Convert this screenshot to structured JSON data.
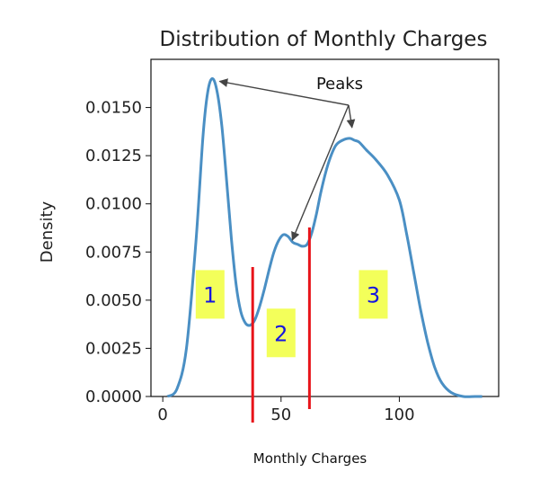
{
  "chart_data": {
    "type": "line",
    "title": "Distribution of Monthly Charges",
    "xlabel": "Monthly Charges",
    "ylabel": "Density",
    "xlim": [
      -5,
      142
    ],
    "ylim": [
      0,
      0.0175
    ],
    "x_ticks": [
      0,
      50,
      100
    ],
    "y_ticks": [
      {
        "value": 0.0,
        "label": "0.0000"
      },
      {
        "value": 0.0025,
        "label": "0.0025"
      },
      {
        "value": 0.005,
        "label": "0.0050"
      },
      {
        "value": 0.0075,
        "label": "0.0075"
      },
      {
        "value": 0.01,
        "label": "0.0100"
      },
      {
        "value": 0.0125,
        "label": "0.0125"
      },
      {
        "value": 0.015,
        "label": "0.0150"
      }
    ],
    "grid": false,
    "series": [
      {
        "color": "#4a8fc4",
        "x": [
          2,
          6,
          10,
          14,
          17,
          19,
          21,
          23,
          25,
          27,
          29,
          31,
          33,
          35,
          37,
          39,
          41,
          43,
          45,
          47,
          49,
          51,
          53,
          55,
          57,
          59,
          61,
          63,
          65,
          67,
          70,
          73,
          76,
          79,
          81,
          83,
          86,
          90,
          95,
          100,
          103,
          106,
          109,
          112,
          115,
          118,
          122,
          127,
          132,
          135
        ],
        "y": [
          0.0,
          0.0004,
          0.0025,
          0.008,
          0.0135,
          0.0158,
          0.0165,
          0.0158,
          0.014,
          0.0112,
          0.0082,
          0.0058,
          0.0044,
          0.0038,
          0.0037,
          0.004,
          0.0047,
          0.0056,
          0.0066,
          0.0075,
          0.0081,
          0.0084,
          0.0083,
          0.008,
          0.0079,
          0.0078,
          0.0079,
          0.0085,
          0.0095,
          0.0107,
          0.0121,
          0.013,
          0.0133,
          0.0134,
          0.0133,
          0.0132,
          0.0128,
          0.0123,
          0.0115,
          0.0102,
          0.0085,
          0.0065,
          0.0045,
          0.0028,
          0.0015,
          0.0007,
          0.0002,
          0.0,
          0.0,
          0.0
        ]
      }
    ],
    "annotations": {
      "peaks_label": "Peaks",
      "peaks": [
        {
          "x": 21,
          "y": 0.0165
        },
        {
          "x": 54,
          "y": 0.0084
        },
        {
          "x": 80,
          "y": 0.0134
        }
      ],
      "dividers": [
        38,
        62
      ],
      "divider_color": "#e8141a",
      "regions": [
        {
          "label": "1",
          "x": 20,
          "y": 0.0053
        },
        {
          "label": "2",
          "x": 50,
          "y": 0.0033
        },
        {
          "label": "3",
          "x": 89,
          "y": 0.0053
        }
      ],
      "region_fill": "#f3ff5a"
    }
  }
}
